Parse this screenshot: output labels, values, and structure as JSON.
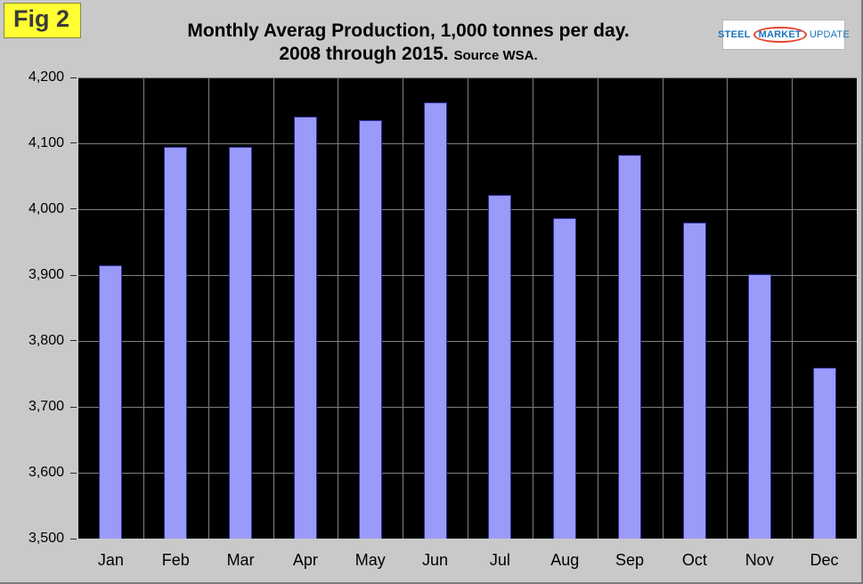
{
  "fig_label": "Fig 2",
  "header": {
    "title_line1": "Monthly Averag Production, 1,000 tonnes per day.",
    "title_line2": "2008 through 2015.",
    "source": "Source WSA."
  },
  "logo": {
    "word1": "STEEL",
    "word2": "MARKET",
    "word3": "UPDATE"
  },
  "chart_data": {
    "type": "bar",
    "title": "Monthly Averag Production, 1,000 tonnes per day. 2008 through 2015.",
    "subtitle": "Source WSA.",
    "categories": [
      "Jan",
      "Feb",
      "Mar",
      "Apr",
      "May",
      "Jun",
      "Jul",
      "Aug",
      "Sep",
      "Oct",
      "Nov",
      "Dec"
    ],
    "values": [
      3915,
      4095,
      4095,
      4140,
      4135,
      4162,
      4022,
      3987,
      4082,
      3980,
      3902,
      3760
    ],
    "xlabel": "",
    "ylabel": "",
    "ylim": [
      3500,
      4200
    ],
    "ytick_step": 100,
    "ytick_labels": [
      "4,200",
      "4,100",
      "4,000",
      "3,900",
      "3,800",
      "3,700",
      "3,600",
      "3,500"
    ],
    "grid": true,
    "legend": false,
    "bar_color": "#9A9AF8",
    "bar_border_color": "#30309A",
    "plot_background": "#000000",
    "grid_color": "#7F7F7F",
    "page_background": "#C9C9C9"
  }
}
